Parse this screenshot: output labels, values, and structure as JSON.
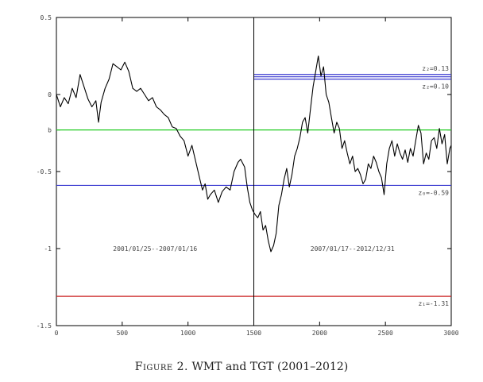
{
  "figure": {
    "label": "Figure 2.",
    "title": "WMT and TGT (2001–2012)"
  },
  "chart_data": {
    "type": "line",
    "xlim": [
      0,
      3000
    ],
    "ylim": [
      -1.5,
      0.5
    ],
    "x_ticks": [
      0,
      500,
      1000,
      1500,
      2000,
      2500,
      3000
    ],
    "y_ticks": [
      {
        "value": 0.5,
        "label": "0.5"
      },
      {
        "value": 0,
        "label": "0"
      },
      {
        "value": -0.23,
        "label": "b"
      },
      {
        "value": -0.5,
        "label": "-0.5"
      },
      {
        "value": -1,
        "label": "-1"
      },
      {
        "value": -1.5,
        "label": "-1.5"
      }
    ],
    "grid": false,
    "series": [
      {
        "color": "#000000",
        "points": [
          [
            0,
            0.0
          ],
          [
            30,
            -0.08
          ],
          [
            60,
            -0.02
          ],
          [
            90,
            -0.06
          ],
          [
            120,
            0.04
          ],
          [
            150,
            -0.02
          ],
          [
            180,
            0.13
          ],
          [
            210,
            0.05
          ],
          [
            240,
            -0.03
          ],
          [
            270,
            -0.08
          ],
          [
            300,
            -0.04
          ],
          [
            320,
            -0.18
          ],
          [
            340,
            -0.05
          ],
          [
            370,
            0.04
          ],
          [
            400,
            0.1
          ],
          [
            430,
            0.2
          ],
          [
            460,
            0.18
          ],
          [
            490,
            0.16
          ],
          [
            520,
            0.21
          ],
          [
            550,
            0.15
          ],
          [
            580,
            0.04
          ],
          [
            610,
            0.02
          ],
          [
            640,
            0.04
          ],
          [
            670,
            0.0
          ],
          [
            700,
            -0.04
          ],
          [
            730,
            -0.02
          ],
          [
            760,
            -0.08
          ],
          [
            790,
            -0.1
          ],
          [
            820,
            -0.13
          ],
          [
            850,
            -0.15
          ],
          [
            880,
            -0.21
          ],
          [
            910,
            -0.22
          ],
          [
            940,
            -0.27
          ],
          [
            970,
            -0.3
          ],
          [
            1000,
            -0.4
          ],
          [
            1030,
            -0.33
          ],
          [
            1060,
            -0.44
          ],
          [
            1090,
            -0.55
          ],
          [
            1110,
            -0.62
          ],
          [
            1130,
            -0.58
          ],
          [
            1150,
            -0.68
          ],
          [
            1170,
            -0.65
          ],
          [
            1200,
            -0.62
          ],
          [
            1230,
            -0.7
          ],
          [
            1260,
            -0.63
          ],
          [
            1290,
            -0.6
          ],
          [
            1320,
            -0.62
          ],
          [
            1350,
            -0.5
          ],
          [
            1380,
            -0.44
          ],
          [
            1400,
            -0.42
          ],
          [
            1430,
            -0.47
          ],
          [
            1450,
            -0.6
          ],
          [
            1470,
            -0.7
          ],
          [
            1490,
            -0.75
          ],
          [
            1510,
            -0.78
          ],
          [
            1530,
            -0.8
          ],
          [
            1550,
            -0.76
          ],
          [
            1570,
            -0.88
          ],
          [
            1590,
            -0.85
          ],
          [
            1610,
            -0.95
          ],
          [
            1630,
            -1.02
          ],
          [
            1650,
            -0.98
          ],
          [
            1670,
            -0.9
          ],
          [
            1690,
            -0.72
          ],
          [
            1710,
            -0.65
          ],
          [
            1730,
            -0.55
          ],
          [
            1750,
            -0.48
          ],
          [
            1770,
            -0.6
          ],
          [
            1790,
            -0.52
          ],
          [
            1810,
            -0.4
          ],
          [
            1830,
            -0.35
          ],
          [
            1850,
            -0.28
          ],
          [
            1870,
            -0.18
          ],
          [
            1890,
            -0.15
          ],
          [
            1910,
            -0.25
          ],
          [
            1930,
            -0.1
          ],
          [
            1950,
            0.05
          ],
          [
            1970,
            0.15
          ],
          [
            1990,
            0.25
          ],
          [
            2010,
            0.12
          ],
          [
            2030,
            0.18
          ],
          [
            2050,
            0.0
          ],
          [
            2070,
            -0.05
          ],
          [
            2090,
            -0.15
          ],
          [
            2110,
            -0.25
          ],
          [
            2130,
            -0.18
          ],
          [
            2150,
            -0.22
          ],
          [
            2170,
            -0.35
          ],
          [
            2190,
            -0.3
          ],
          [
            2210,
            -0.38
          ],
          [
            2230,
            -0.45
          ],
          [
            2250,
            -0.4
          ],
          [
            2270,
            -0.5
          ],
          [
            2290,
            -0.48
          ],
          [
            2310,
            -0.52
          ],
          [
            2330,
            -0.58
          ],
          [
            2350,
            -0.55
          ],
          [
            2370,
            -0.45
          ],
          [
            2390,
            -0.48
          ],
          [
            2410,
            -0.4
          ],
          [
            2430,
            -0.44
          ],
          [
            2450,
            -0.5
          ],
          [
            2470,
            -0.54
          ],
          [
            2490,
            -0.65
          ],
          [
            2510,
            -0.45
          ],
          [
            2530,
            -0.35
          ],
          [
            2550,
            -0.3
          ],
          [
            2570,
            -0.4
          ],
          [
            2590,
            -0.32
          ],
          [
            2610,
            -0.38
          ],
          [
            2630,
            -0.42
          ],
          [
            2650,
            -0.36
          ],
          [
            2670,
            -0.44
          ],
          [
            2690,
            -0.35
          ],
          [
            2710,
            -0.4
          ],
          [
            2730,
            -0.3
          ],
          [
            2750,
            -0.2
          ],
          [
            2770,
            -0.25
          ],
          [
            2790,
            -0.45
          ],
          [
            2810,
            -0.38
          ],
          [
            2830,
            -0.42
          ],
          [
            2850,
            -0.3
          ],
          [
            2870,
            -0.28
          ],
          [
            2890,
            -0.35
          ],
          [
            2910,
            -0.22
          ],
          [
            2930,
            -0.32
          ],
          [
            2950,
            -0.26
          ],
          [
            2970,
            -0.45
          ],
          [
            2990,
            -0.35
          ],
          [
            3000,
            -0.33
          ]
        ]
      }
    ],
    "hlines": [
      {
        "y": 0.13,
        "x_from": 1500,
        "x_to": 3000,
        "color": "#3a3ad0",
        "label": "z₂=0.13"
      },
      {
        "y": 0.115,
        "x_from": 1500,
        "x_to": 3000,
        "color": "#3a3ad0",
        "label": ""
      },
      {
        "y": 0.1,
        "x_from": 1500,
        "x_to": 3000,
        "color": "#3a3ad0",
        "label": "z₂=0.10"
      },
      {
        "y": -0.23,
        "x_from": 0,
        "x_to": 3000,
        "color": "#22cc22",
        "label": ""
      },
      {
        "y": -0.59,
        "x_from": 0,
        "x_to": 3000,
        "color": "#3a3ad0",
        "label": "z₀=-0.59"
      },
      {
        "y": -1.31,
        "x_from": 0,
        "x_to": 3000,
        "color": "#cc2222",
        "label": "z₁=-1.31"
      }
    ],
    "vlines": [
      {
        "x": 1500,
        "color": "#000000"
      }
    ],
    "annotations": [
      {
        "text": "2001/01/25--2007/01/16",
        "x": 750,
        "y": -1.0
      },
      {
        "text": "2007/01/17--2012/12/31",
        "x": 2250,
        "y": -1.0
      }
    ]
  }
}
